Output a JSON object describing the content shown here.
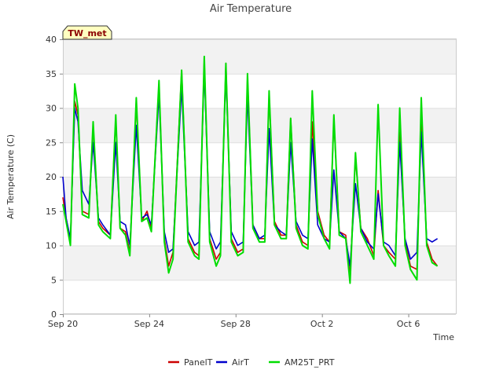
{
  "chart_data": {
    "type": "line",
    "title": "Air Temperature",
    "xlabel": "Time",
    "ylabel": "Air Temperature (C)",
    "station_tag": "TW_met",
    "ylim": [
      0,
      40
    ],
    "yticks": [
      0,
      5,
      10,
      15,
      20,
      25,
      30,
      35,
      40
    ],
    "xlim_days": [
      0,
      18.2
    ],
    "xticks": [
      {
        "day": 0,
        "label": "Sep 20"
      },
      {
        "day": 4,
        "label": "Sep 24"
      },
      {
        "day": 8,
        "label": "Sep 28"
      },
      {
        "day": 12,
        "label": "Oct 2"
      },
      {
        "day": 16,
        "label": "Oct 6"
      }
    ],
    "grid": true,
    "legend_position": "bottom",
    "x_unit": "days since Sep 20",
    "series": [
      {
        "name": "PanelT",
        "color": "#cc0000",
        "x": [
          0.0,
          0.15,
          0.35,
          0.55,
          0.7,
          0.9,
          1.2,
          1.4,
          1.65,
          1.85,
          2.2,
          2.45,
          2.65,
          2.9,
          3.1,
          3.4,
          3.65,
          3.9,
          4.1,
          4.45,
          4.7,
          4.9,
          5.1,
          5.5,
          5.8,
          6.1,
          6.3,
          6.55,
          6.8,
          7.1,
          7.3,
          7.55,
          7.8,
          8.1,
          8.35,
          8.55,
          8.8,
          9.1,
          9.35,
          9.55,
          9.8,
          10.1,
          10.35,
          10.55,
          10.8,
          11.1,
          11.35,
          11.55,
          11.8,
          12.1,
          12.35,
          12.55,
          12.8,
          13.1,
          13.3,
          13.55,
          13.8,
          14.1,
          14.4,
          14.6,
          14.85,
          15.1,
          15.4,
          15.6,
          15.85,
          16.1,
          16.4,
          16.6,
          16.85,
          17.1,
          17.35
        ],
        "y": [
          17,
          14,
          10.5,
          31,
          29,
          15,
          14.5,
          27.5,
          13.5,
          12.5,
          11.5,
          28.5,
          12.5,
          12,
          9,
          31,
          13.5,
          15,
          12.5,
          33.5,
          11,
          7,
          9,
          35.5,
          11,
          9,
          8.5,
          37,
          11,
          8,
          9,
          36.5,
          11,
          9,
          9.5,
          34.5,
          13,
          11,
          11,
          32,
          13.5,
          11.5,
          11.5,
          28.5,
          13,
          10.5,
          10,
          28,
          15,
          11.5,
          10.5,
          28.5,
          12,
          11.5,
          5.5,
          23,
          12.5,
          11,
          8.5,
          18,
          10,
          9,
          8,
          26.5,
          10.5,
          7,
          6.5,
          28.5,
          10.5,
          8,
          7
        ]
      },
      {
        "name": "AirT",
        "color": "#0000cc",
        "x": [
          0.0,
          0.15,
          0.35,
          0.55,
          0.7,
          0.9,
          1.2,
          1.4,
          1.65,
          1.85,
          2.2,
          2.45,
          2.65,
          2.9,
          3.1,
          3.4,
          3.65,
          3.9,
          4.1,
          4.45,
          4.7,
          4.9,
          5.1,
          5.5,
          5.8,
          6.1,
          6.3,
          6.55,
          6.8,
          7.1,
          7.3,
          7.55,
          7.8,
          8.1,
          8.35,
          8.55,
          8.8,
          9.1,
          9.35,
          9.55,
          9.8,
          10.1,
          10.35,
          10.55,
          10.8,
          11.1,
          11.35,
          11.55,
          11.8,
          12.1,
          12.35,
          12.55,
          12.8,
          13.1,
          13.3,
          13.55,
          13.8,
          14.1,
          14.4,
          14.6,
          14.85,
          15.1,
          15.4,
          15.6,
          15.85,
          16.1,
          16.4,
          16.6,
          16.85,
          17.1,
          17.35
        ],
        "y": [
          20,
          14,
          11,
          30,
          28,
          18,
          16,
          25,
          14,
          13,
          11.5,
          25,
          13.5,
          13,
          10,
          27.5,
          14,
          14.5,
          13,
          32,
          12,
          9,
          9.5,
          33,
          12,
          10,
          10.5,
          35.5,
          12,
          9.5,
          10.5,
          35,
          12,
          10,
          10.5,
          32,
          13,
          11,
          11.5,
          27,
          13,
          12,
          11.5,
          25,
          13.5,
          11.5,
          11,
          25.5,
          13,
          11,
          10.5,
          21,
          12,
          11,
          7,
          19,
          12.5,
          10.5,
          9.5,
          17.5,
          10.5,
          10,
          8.5,
          25,
          11,
          8,
          9,
          26.5,
          11,
          10.5,
          11
        ]
      },
      {
        "name": "AM25T_PRT",
        "color": "#00dd00",
        "x": [
          0.0,
          0.15,
          0.35,
          0.55,
          0.7,
          0.9,
          1.2,
          1.4,
          1.65,
          1.85,
          2.2,
          2.45,
          2.65,
          2.9,
          3.1,
          3.4,
          3.65,
          3.9,
          4.1,
          4.45,
          4.7,
          4.9,
          5.1,
          5.5,
          5.8,
          6.1,
          6.3,
          6.55,
          6.8,
          7.1,
          7.3,
          7.55,
          7.8,
          8.1,
          8.35,
          8.55,
          8.8,
          9.1,
          9.35,
          9.55,
          9.8,
          10.1,
          10.35,
          10.55,
          10.8,
          11.1,
          11.35,
          11.55,
          11.8,
          12.1,
          12.35,
          12.55,
          12.8,
          13.1,
          13.3,
          13.55,
          13.8,
          14.1,
          14.4,
          14.6,
          14.85,
          15.1,
          15.4,
          15.6,
          15.85,
          16.1,
          16.4,
          16.6,
          16.85,
          17.1,
          17.35
        ],
        "y": [
          16,
          13.5,
          10,
          33.5,
          30,
          14.5,
          14,
          28,
          13,
          12,
          11,
          29,
          12.5,
          11.5,
          8.5,
          31.5,
          13.5,
          14,
          12,
          34,
          10.5,
          6,
          8,
          35.5,
          10.5,
          8.5,
          8,
          37.5,
          10.5,
          7,
          8.5,
          36.5,
          10.5,
          8.5,
          9,
          35,
          12.5,
          10.5,
          10.5,
          32.5,
          13,
          11,
          11,
          28.5,
          12.5,
          10,
          9.5,
          32.5,
          14.5,
          11,
          9.5,
          29,
          11.5,
          11,
          4.5,
          23.5,
          12,
          10,
          8,
          30.5,
          10,
          8.5,
          7,
          30,
          10,
          6.5,
          5,
          31.5,
          10,
          7.5,
          7
        ]
      }
    ]
  }
}
